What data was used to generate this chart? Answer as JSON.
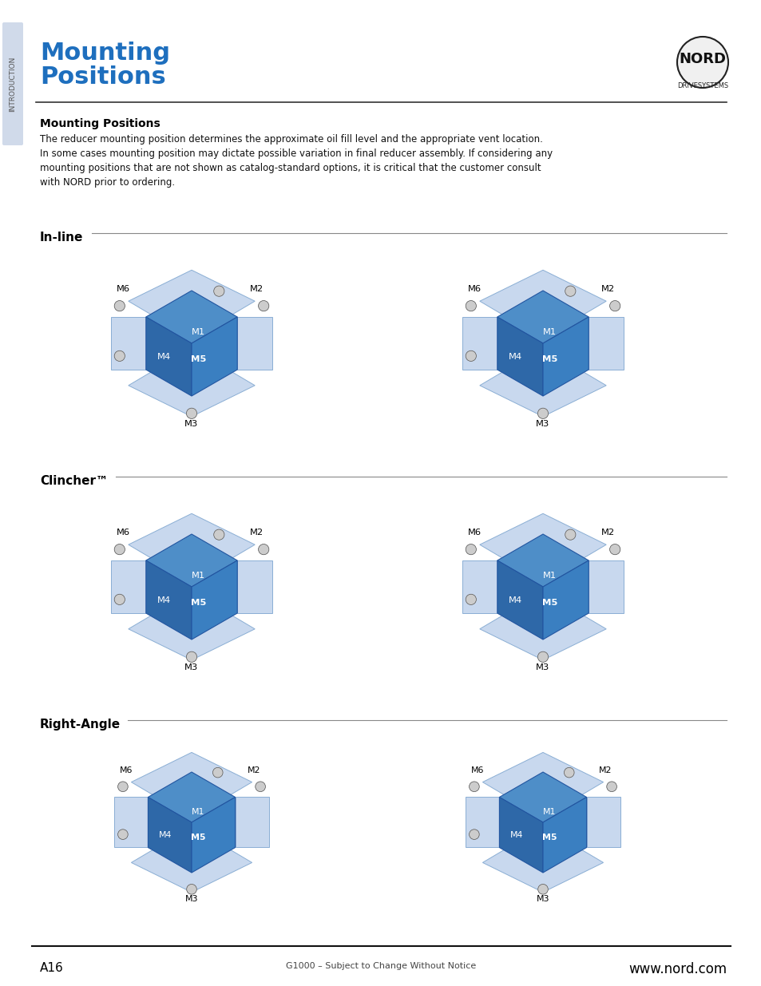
{
  "page_bg": "#ffffff",
  "header_title_line1": "Mounting",
  "header_title_line2": "Positions",
  "header_title_color": "#1e6fbe",
  "section_title": "Mounting Positions",
  "body_text": "The reducer mounting position determines the approximate oil fill level and the appropriate vent location.\nIn some cases mounting position may dictate possible variation in final reducer assembly. If considering any\nmounting positions that are not shown as catalog-standard options, it is critical that the customer consult\nwith NORD prior to ordering.",
  "section_inline": "In-line",
  "section_clincher": "Clincher™",
  "section_rightangle": "Right-Angle",
  "footer_left": "A16",
  "footer_center": "G1000 – Subject to Change Without Notice",
  "footer_right": "www.nord.com",
  "nord_text": "NORD",
  "nord_sub": "DRIVESYSTEMS",
  "tab_text": "INTRODUCTION",
  "cube_fill": "#3a7fc1",
  "cube_edge": "#2255a0",
  "plane_fill": "#c8d8ee",
  "plane_edge": "#8aaed4",
  "label_color": "#000000",
  "label_fontsize": 7.5
}
